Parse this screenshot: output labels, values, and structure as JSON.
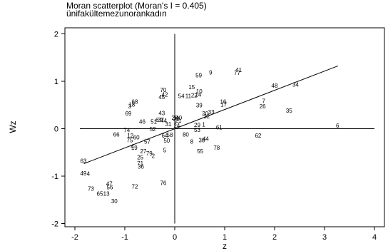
{
  "chart_data": {
    "type": "scatter",
    "title": "Moran scatterplot (Moran's I = 0.405)",
    "subtitle": "ünifakültemezunorankadın",
    "xlabel": "z",
    "ylabel": "Wz",
    "xlim": [
      -2.2,
      4.2
    ],
    "ylim": [
      -2.1,
      2.1
    ],
    "xticks": [
      "-2",
      "-1",
      "0",
      "1",
      "2",
      "3",
      "4"
    ],
    "yticks": [
      "-2",
      "-1",
      "0",
      "1",
      "2"
    ],
    "xtick_values": [
      -2,
      -1,
      0,
      1,
      2,
      3,
      4
    ],
    "ytick_values": [
      -2,
      -1,
      0,
      1,
      2
    ],
    "regression_line": {
      "slope": 0.405,
      "x": [
        -1.82,
        3.27
      ]
    },
    "reference_lines": {
      "x": 0,
      "y": 0
    },
    "points": [
      {
        "label": "41",
        "x": 1.28,
        "y": 1.24
      },
      {
        "label": "77",
        "x": 1.25,
        "y": 1.18
      },
      {
        "label": "9",
        "x": 0.72,
        "y": 1.19
      },
      {
        "label": "59",
        "x": 0.48,
        "y": 1.13
      },
      {
        "label": "48",
        "x": 2.0,
        "y": 0.91
      },
      {
        "label": "34",
        "x": 2.42,
        "y": 0.93
      },
      {
        "label": "15",
        "x": 0.34,
        "y": 0.88
      },
      {
        "label": "70",
        "x": -0.23,
        "y": 0.82
      },
      {
        "label": "10",
        "x": 0.49,
        "y": 0.79
      },
      {
        "label": "42",
        "x": -0.2,
        "y": 0.72
      },
      {
        "label": "45",
        "x": -0.26,
        "y": 0.67
      },
      {
        "label": "54",
        "x": 0.13,
        "y": 0.69
      },
      {
        "label": "11",
        "x": 0.27,
        "y": 0.69
      },
      {
        "label": "22",
        "x": 0.39,
        "y": 0.71
      },
      {
        "label": "14",
        "x": 0.47,
        "y": 0.72
      },
      {
        "label": "68",
        "x": -0.8,
        "y": 0.57
      },
      {
        "label": "3",
        "x": -0.9,
        "y": 0.47
      },
      {
        "label": "18",
        "x": -0.86,
        "y": 0.51
      },
      {
        "label": "7",
        "x": 1.78,
        "y": 0.59
      },
      {
        "label": "16",
        "x": 0.97,
        "y": 0.57
      },
      {
        "label": "17",
        "x": 0.98,
        "y": 0.51
      },
      {
        "label": "39",
        "x": 0.49,
        "y": 0.5
      },
      {
        "label": "26",
        "x": 1.76,
        "y": 0.47
      },
      {
        "label": "69",
        "x": -0.93,
        "y": 0.32
      },
      {
        "label": "43",
        "x": -0.26,
        "y": 0.33
      },
      {
        "label": "20",
        "x": 0.61,
        "y": 0.32
      },
      {
        "label": "33",
        "x": 0.73,
        "y": 0.35
      },
      {
        "label": "32",
        "x": 0.64,
        "y": 0.26
      },
      {
        "label": "35",
        "x": 2.29,
        "y": 0.38
      },
      {
        "label": "28",
        "x": 0.0,
        "y": 0.23
      },
      {
        "label": "40",
        "x": 0.08,
        "y": 0.23
      },
      {
        "label": "23",
        "x": 0.03,
        "y": 0.21
      },
      {
        "label": "46",
        "x": -0.65,
        "y": 0.15
      },
      {
        "label": "51",
        "x": -0.42,
        "y": 0.15
      },
      {
        "label": "67",
        "x": -0.32,
        "y": 0.19
      },
      {
        "label": "37",
        "x": -0.28,
        "y": 0.19
      },
      {
        "label": "44",
        "x": -0.22,
        "y": 0.17
      },
      {
        "label": "21",
        "x": 0.07,
        "y": 0.17
      },
      {
        "label": "31",
        "x": -0.13,
        "y": 0.1
      },
      {
        "label": "24",
        "x": 0.04,
        "y": 0.07
      },
      {
        "label": "29",
        "x": 0.45,
        "y": 0.08
      },
      {
        "label": "1",
        "x": 0.58,
        "y": 0.09
      },
      {
        "label": "61",
        "x": 0.89,
        "y": 0.03
      },
      {
        "label": "6",
        "x": 3.26,
        "y": 0.07
      },
      {
        "label": "74",
        "x": -0.96,
        "y": -0.03
      },
      {
        "label": "52",
        "x": -0.44,
        "y": -0.01
      },
      {
        "label": "53",
        "x": 0.45,
        "y": -0.02
      },
      {
        "label": "66",
        "x": -1.17,
        "y": -0.12
      },
      {
        "label": "12",
        "x": -0.89,
        "y": -0.14
      },
      {
        "label": "60",
        "x": -0.77,
        "y": -0.18
      },
      {
        "label": "64",
        "x": -0.2,
        "y": -0.14
      },
      {
        "label": "58",
        "x": -0.1,
        "y": -0.13
      },
      {
        "label": "80",
        "x": 0.22,
        "y": -0.12
      },
      {
        "label": "62",
        "x": 1.67,
        "y": -0.14
      },
      {
        "label": "75",
        "x": -0.9,
        "y": -0.24
      },
      {
        "label": "50",
        "x": -0.16,
        "y": -0.25
      },
      {
        "label": "44",
        "x": 0.62,
        "y": -0.21
      },
      {
        "label": "38",
        "x": 0.54,
        "y": -0.24
      },
      {
        "label": "57",
        "x": -0.55,
        "y": -0.27
      },
      {
        "label": "8",
        "x": 0.34,
        "y": -0.27
      },
      {
        "label": "4",
        "x": -0.85,
        "y": -0.37
      },
      {
        "label": "19",
        "x": -0.81,
        "y": -0.4
      },
      {
        "label": "78",
        "x": 0.84,
        "y": -0.4
      },
      {
        "label": "27",
        "x": -0.63,
        "y": -0.47
      },
      {
        "label": "5",
        "x": -0.2,
        "y": -0.45
      },
      {
        "label": "55",
        "x": 0.51,
        "y": -0.47
      },
      {
        "label": "79",
        "x": -0.51,
        "y": -0.52
      },
      {
        "label": "2",
        "x": -0.43,
        "y": -0.57
      },
      {
        "label": "25",
        "x": -0.69,
        "y": -0.6
      },
      {
        "label": "71",
        "x": -0.69,
        "y": -0.73
      },
      {
        "label": "36",
        "x": -0.68,
        "y": -0.8
      },
      {
        "label": "63",
        "x": -1.83,
        "y": -0.68
      },
      {
        "label": "49",
        "x": -1.83,
        "y": -0.94
      },
      {
        "label": "4",
        "x": -1.73,
        "y": -0.95
      },
      {
        "label": "76",
        "x": -0.23,
        "y": -1.14
      },
      {
        "label": "47",
        "x": -1.31,
        "y": -1.16
      },
      {
        "label": "56",
        "x": -1.3,
        "y": -1.23
      },
      {
        "label": "72",
        "x": -0.8,
        "y": -1.22
      },
      {
        "label": "73",
        "x": -1.68,
        "y": -1.26
      },
      {
        "label": "13",
        "x": -1.37,
        "y": -1.37
      },
      {
        "label": "65",
        "x": -1.5,
        "y": -1.37
      },
      {
        "label": "30",
        "x": -1.21,
        "y": -1.53
      }
    ]
  }
}
